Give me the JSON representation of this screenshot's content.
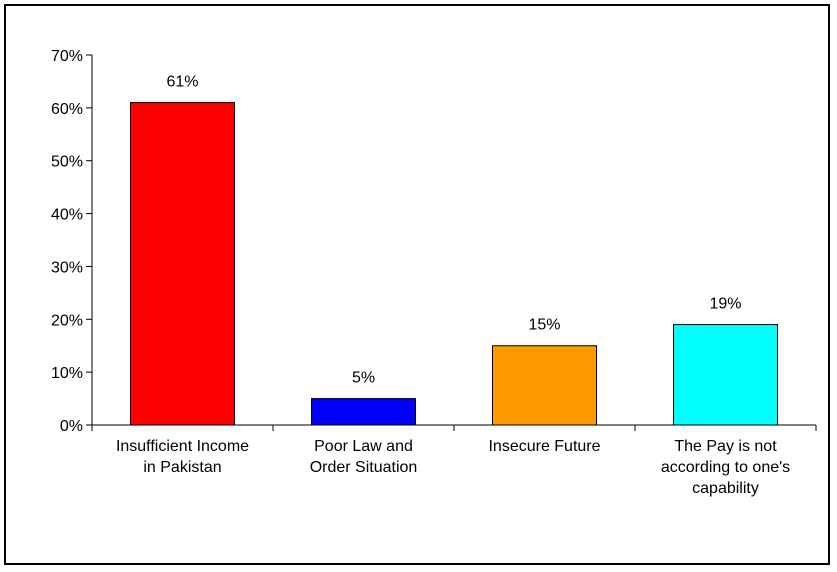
{
  "chart_data": {
    "type": "bar",
    "title": "",
    "xlabel": "",
    "ylabel": "",
    "ylim": [
      0,
      70
    ],
    "y_ticks": [
      "0%",
      "10%",
      "20%",
      "30%",
      "40%",
      "50%",
      "60%",
      "70%"
    ],
    "y_tick_values": [
      0,
      10,
      20,
      30,
      40,
      50,
      60,
      70
    ],
    "categories": [
      [
        "Insufficient Income",
        "in Pakistan"
      ],
      [
        "Poor Law and",
        "Order Situation"
      ],
      [
        "Insecure Future"
      ],
      [
        "The Pay is not",
        "according to one's",
        "capability"
      ]
    ],
    "values": [
      61,
      5,
      15,
      19
    ],
    "value_labels": [
      "61%",
      "5%",
      "15%",
      "19%"
    ],
    "colors": [
      "#ff0000",
      "#0000ff",
      "#ff9900",
      "#00ffff"
    ],
    "grid": false,
    "legend": "none"
  }
}
